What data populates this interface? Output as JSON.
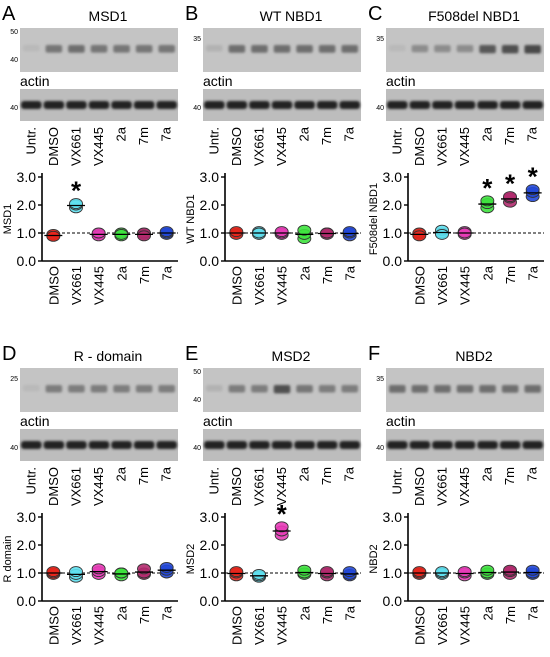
{
  "chart_data": [
    {
      "type": "scatter",
      "panel_letter": "A",
      "blot_title": "MSD1",
      "mw_markers": [
        "50",
        "40"
      ],
      "actin_label": "actin",
      "actin_mw": "40",
      "lane_labels": [
        "Untr.",
        "DMSO",
        "VX661",
        "VX445",
        "2a",
        "7m",
        "7a"
      ],
      "band_intensity": [
        0.1,
        0.55,
        0.6,
        0.55,
        0.55,
        0.55,
        0.55
      ],
      "ylabel": "MSD1",
      "ylim": [
        0,
        3.0
      ],
      "yticks": [
        "0.0",
        "1.0",
        "2.0",
        "3.0"
      ],
      "reference_line": 1.0,
      "categories": [
        "DMSO",
        "VX661",
        "VX445",
        "2a",
        "7m",
        "7a"
      ],
      "colors": [
        "#e8261c",
        "#5fe0f0",
        "#e83cb8",
        "#3ee23e",
        "#b22a6e",
        "#2248d8"
      ],
      "values": [
        [
          0.9,
          0.95,
          0.88
        ],
        [
          1.9,
          2.0,
          2.05
        ],
        [
          0.95,
          0.9,
          1.0
        ],
        [
          0.9,
          1.0,
          0.95
        ],
        [
          0.95,
          1.0,
          0.9
        ],
        [
          0.95,
          1.0,
          1.05
        ]
      ],
      "significance": [
        "",
        "*",
        "",
        "",
        "",
        ""
      ]
    },
    {
      "type": "scatter",
      "panel_letter": "B",
      "blot_title": "WT NBD1",
      "mw_markers": [
        "35"
      ],
      "actin_label": "actin",
      "actin_mw": "40",
      "lane_labels": [
        "Untr.",
        "DMSO",
        "VX661",
        "VX445",
        "2a",
        "7m",
        "7a"
      ],
      "band_intensity": [
        0.15,
        0.6,
        0.6,
        0.6,
        0.6,
        0.6,
        0.6
      ],
      "ylabel": "WT NBD1",
      "ylim": [
        0,
        3.0
      ],
      "yticks": [
        "0.0",
        "1.0",
        "2.0",
        "3.0"
      ],
      "reference_line": 1.0,
      "categories": [
        "DMSO",
        "VX661",
        "VX445",
        "2a",
        "7m",
        "7a"
      ],
      "colors": [
        "#e8261c",
        "#5fe0f0",
        "#e83cb8",
        "#3ee23e",
        "#b22a6e",
        "#2248d8"
      ],
      "values": [
        [
          1.0,
          0.95,
          1.05
        ],
        [
          0.95,
          1.05,
          1.0
        ],
        [
          0.95,
          1.0,
          1.05
        ],
        [
          0.8,
          0.95,
          1.1
        ],
        [
          1.0,
          0.95,
          1.0
        ],
        [
          0.9,
          1.0,
          1.05
        ]
      ],
      "significance": [
        "",
        "",
        "",
        "",
        "",
        ""
      ]
    },
    {
      "type": "scatter",
      "panel_letter": "C",
      "blot_title": "F508del NBD1",
      "mw_markers": [
        "35"
      ],
      "actin_label": "actin",
      "actin_mw": "40",
      "lane_labels": [
        "Untr.",
        "DMSO",
        "VX661",
        "VX445",
        "2a",
        "7m",
        "7a"
      ],
      "band_intensity": [
        0.1,
        0.4,
        0.4,
        0.4,
        0.75,
        0.8,
        0.85
      ],
      "ylabel": "F508del NBD1",
      "ylim": [
        0,
        3.0
      ],
      "yticks": [
        "0.0",
        "1.0",
        "2.0",
        "3.0"
      ],
      "reference_line": 1.0,
      "categories": [
        "DMSO",
        "VX661",
        "VX445",
        "2a",
        "7m",
        "7a"
      ],
      "colors": [
        "#e8261c",
        "#5fe0f0",
        "#e83cb8",
        "#3ee23e",
        "#b22a6e",
        "#2248d8"
      ],
      "values": [
        [
          0.95,
          1.0,
          0.9
        ],
        [
          1.0,
          1.1,
          0.95
        ],
        [
          0.95,
          1.05,
          1.0
        ],
        [
          1.9,
          2.05,
          2.15
        ],
        [
          2.1,
          2.25,
          2.3
        ],
        [
          2.3,
          2.45,
          2.55
        ]
      ],
      "significance": [
        "",
        "",
        "",
        "*",
        "*",
        "*"
      ]
    },
    {
      "type": "scatter",
      "panel_letter": "D",
      "blot_title": "R - domain",
      "mw_markers": [
        "25"
      ],
      "actin_label": "actin",
      "actin_mw": "40",
      "lane_labels": [
        "Untr.",
        "DMSO",
        "VX661",
        "VX445",
        "2a",
        "7m",
        "7a"
      ],
      "band_intensity": [
        0.1,
        0.5,
        0.5,
        0.5,
        0.5,
        0.5,
        0.5
      ],
      "ylabel": "R domain",
      "ylim": [
        0,
        3.0
      ],
      "yticks": [
        "0.0",
        "1.0",
        "2.0",
        "3.0"
      ],
      "reference_line": 1.0,
      "categories": [
        "DMSO",
        "VX661",
        "VX445",
        "2a",
        "7m",
        "7a"
      ],
      "colors": [
        "#e8261c",
        "#5fe0f0",
        "#e83cb8",
        "#3ee23e",
        "#b22a6e",
        "#2248d8"
      ],
      "values": [
        [
          0.95,
          1.0,
          1.05
        ],
        [
          0.85,
          0.95,
          1.05
        ],
        [
          0.95,
          1.05,
          1.15
        ],
        [
          0.9,
          1.0,
          1.0
        ],
        [
          0.95,
          1.0,
          1.15
        ],
        [
          1.0,
          1.1,
          1.2
        ]
      ],
      "significance": [
        "",
        "",
        "",
        "",
        "",
        ""
      ]
    },
    {
      "type": "scatter",
      "panel_letter": "E",
      "blot_title": "MSD2",
      "mw_markers": [
        "50",
        "40"
      ],
      "actin_label": "actin",
      "actin_mw": "40",
      "lane_labels": [
        "Untr.",
        "DMSO",
        "VX661",
        "VX445",
        "2a",
        "7m",
        "7a"
      ],
      "band_intensity": [
        0.15,
        0.5,
        0.5,
        0.8,
        0.55,
        0.5,
        0.5
      ],
      "ylabel": "MSD2",
      "ylim": [
        0,
        3.0
      ],
      "yticks": [
        "0.0",
        "1.0",
        "2.0",
        "3.0"
      ],
      "reference_line": 1.0,
      "categories": [
        "DMSO",
        "VX661",
        "VX445",
        "2a",
        "7m",
        "7a"
      ],
      "colors": [
        "#e8261c",
        "#5fe0f0",
        "#e83cb8",
        "#3ee23e",
        "#b22a6e",
        "#2248d8"
      ],
      "values": [
        [
          0.9,
          1.0,
          1.05
        ],
        [
          0.85,
          0.9,
          0.95
        ],
        [
          2.35,
          2.5,
          2.65
        ],
        [
          0.95,
          1.0,
          1.1
        ],
        [
          0.9,
          1.0,
          1.05
        ],
        [
          0.9,
          0.95,
          1.05
        ]
      ],
      "significance": [
        "",
        "",
        "*",
        "",
        "",
        ""
      ]
    },
    {
      "type": "scatter",
      "panel_letter": "F",
      "blot_title": "NBD2",
      "mw_markers": [
        "35"
      ],
      "actin_label": "actin",
      "actin_mw": "40",
      "lane_labels": [
        "Untr.",
        "DMSO",
        "VX661",
        "VX445",
        "2a",
        "7m",
        "7a"
      ],
      "band_intensity": [
        0.6,
        0.6,
        0.6,
        0.6,
        0.6,
        0.6,
        0.6
      ],
      "ylabel": "NBD2",
      "ylim": [
        0,
        3.0
      ],
      "yticks": [
        "0.0",
        "1.0",
        "2.0",
        "3.0"
      ],
      "reference_line": 1.0,
      "categories": [
        "DMSO",
        "VX661",
        "VX445",
        "2a",
        "7m",
        "7a"
      ],
      "colors": [
        "#e8261c",
        "#5fe0f0",
        "#e83cb8",
        "#3ee23e",
        "#b22a6e",
        "#2248d8"
      ],
      "values": [
        [
          0.95,
          1.0,
          1.05
        ],
        [
          0.95,
          1.0,
          1.05
        ],
        [
          0.9,
          1.0,
          1.05
        ],
        [
          0.95,
          1.0,
          1.1
        ],
        [
          0.95,
          1.05,
          1.1
        ],
        [
          0.95,
          1.0,
          1.1
        ]
      ],
      "significance": [
        "",
        "",
        "",
        "",
        "",
        ""
      ]
    }
  ]
}
